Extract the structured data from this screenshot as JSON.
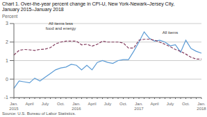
{
  "chart_data": {
    "type": "line",
    "title": "Chart 1. Over-the-year percent change in CPI-U, New York-Newark–Jersey City,\nJanuary 2015–January 2018",
    "ylabel": "Percent",
    "source": "Source: U.S. Bureau of Labor Statistics.",
    "categories": [
      "Jan.\n2015",
      null,
      null,
      "April",
      null,
      null,
      "July",
      null,
      null,
      "Oct.",
      null,
      null,
      "Jan.\n2016",
      null,
      null,
      "April",
      null,
      null,
      "July",
      null,
      null,
      "Oct.",
      null,
      null,
      "Jan.\n2017",
      null,
      null,
      "April",
      null,
      null,
      "July",
      null,
      null,
      "Oct.",
      null,
      null,
      "Jan.\n2018"
    ],
    "series": [
      {
        "name": "All items",
        "color": "#5B9BD5",
        "line_style": "solid",
        "values": [
          -0.5,
          -0.1,
          -0.15,
          -0.2,
          0.05,
          -0.1,
          0.1,
          0.3,
          0.5,
          0.6,
          0.65,
          0.8,
          0.75,
          0.5,
          0.75,
          0.5,
          0.9,
          1.0,
          0.9,
          0.85,
          1.0,
          1.05,
          1.05,
          1.5,
          2.0,
          2.55,
          2.2,
          2.05,
          2.1,
          2.0,
          1.8,
          1.85,
          1.45,
          2.1,
          1.65,
          1.5,
          1.4
        ]
      },
      {
        "name": "All items less\nfood and energy",
        "color": "#833C5E",
        "line_style": "dashed",
        "values": [
          1.3,
          1.55,
          1.6,
          1.58,
          1.55,
          1.6,
          1.62,
          1.7,
          1.9,
          2.0,
          2.05,
          2.05,
          2.05,
          1.85,
          1.88,
          1.78,
          1.88,
          2.05,
          2.0,
          2.0,
          2.0,
          1.95,
          1.68,
          1.68,
          2.1,
          2.15,
          2.15,
          2.1,
          2.0,
          1.88,
          1.75,
          1.6,
          1.5,
          1.35,
          1.18,
          1.08,
          1.08
        ]
      }
    ],
    "annotations": [
      {
        "text": "All items less\nfood and energy",
        "x": 9,
        "y": 2.58
      },
      {
        "text": "All items",
        "x": 30,
        "y": 2.38
      }
    ],
    "ylim": [
      -1,
      3
    ],
    "yticks": [
      -1,
      0,
      1,
      2,
      3
    ],
    "grid": true
  }
}
